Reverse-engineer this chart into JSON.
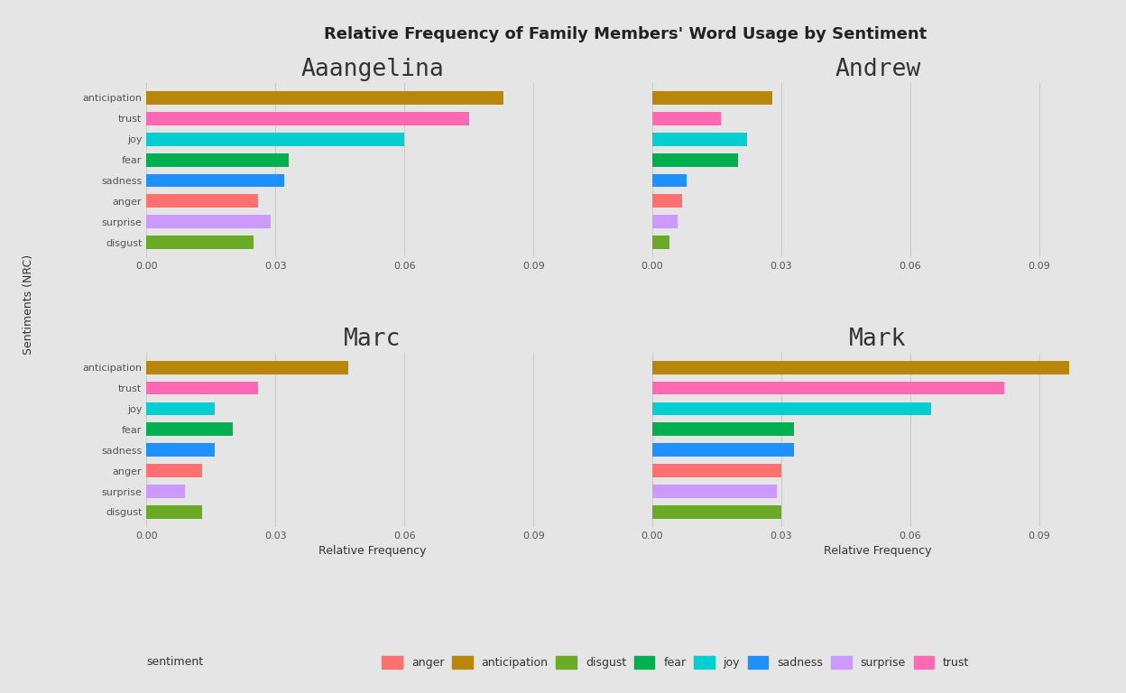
{
  "title": "Relative Frequency of Family Members' Word Usage by Sentiment",
  "ylabel": "Sentiments (NRC)",
  "xlabel": "Relative Frequency",
  "background_color": "#e5e5e5",
  "panel_background": "#e5e5e5",
  "sentiments": [
    "anticipation",
    "trust",
    "joy",
    "fear",
    "sadness",
    "anger",
    "surprise",
    "disgust"
  ],
  "persons": [
    "Aaangelina",
    "Andrew",
    "Marc",
    "Mark"
  ],
  "colors": {
    "anticipation": "#b8860b",
    "trust": "#ff69b4",
    "joy": "#00ced1",
    "fear": "#00b050",
    "sadness": "#1e90ff",
    "anger": "#ff7070",
    "surprise": "#cc99ff",
    "disgust": "#6aaa26"
  },
  "data": {
    "Aaangelina": {
      "anticipation": 0.083,
      "trust": 0.075,
      "joy": 0.06,
      "fear": 0.033,
      "sadness": 0.032,
      "anger": 0.026,
      "surprise": 0.029,
      "disgust": 0.025
    },
    "Andrew": {
      "anticipation": 0.028,
      "trust": 0.016,
      "joy": 0.022,
      "fear": 0.02,
      "sadness": 0.008,
      "anger": 0.007,
      "surprise": 0.006,
      "disgust": 0.004
    },
    "Marc": {
      "anticipation": 0.047,
      "trust": 0.026,
      "joy": 0.016,
      "fear": 0.02,
      "sadness": 0.016,
      "anger": 0.013,
      "surprise": 0.009,
      "disgust": 0.013
    },
    "Mark": {
      "anticipation": 0.097,
      "trust": 0.082,
      "joy": 0.065,
      "fear": 0.033,
      "sadness": 0.033,
      "anger": 0.03,
      "surprise": 0.029,
      "disgust": 0.03
    }
  },
  "xlim": [
    0,
    0.105
  ],
  "xticks": [
    0.0,
    0.03,
    0.06,
    0.09
  ],
  "grid_color": "#cccccc",
  "title_fontsize": 13,
  "subplot_title_fontsize": 19,
  "axis_label_fontsize": 9,
  "tick_fontsize": 8,
  "legend_fontsize": 9
}
